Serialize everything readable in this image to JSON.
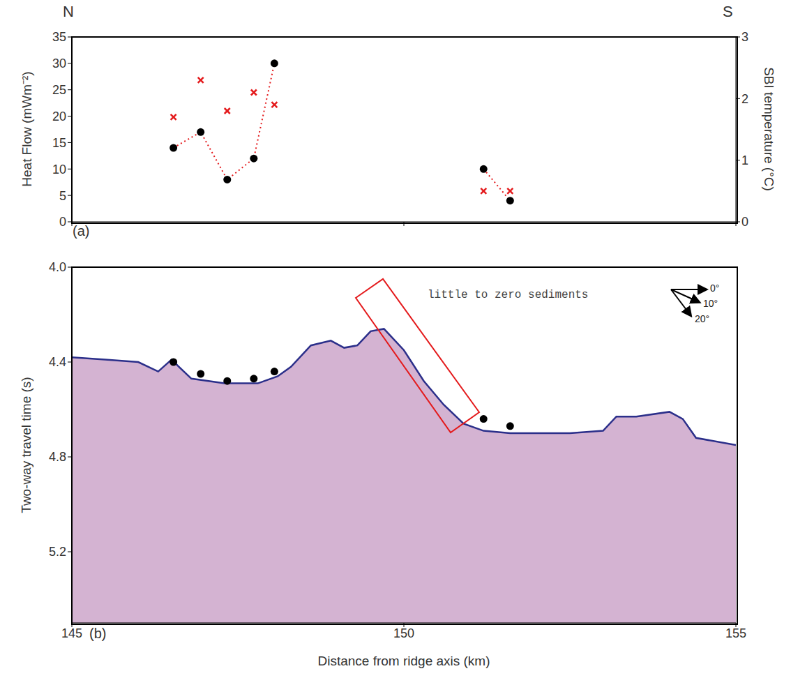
{
  "chart_data": [
    {
      "type": "line",
      "direction_labels": [
        "N",
        "S"
      ],
      "panel_label": "(a)",
      "y_label": "Heat Flow (mWm⁻²)",
      "y2_label": "SBI temperature (°C)",
      "xlim": [
        145,
        155
      ],
      "xticks": [
        145,
        150,
        155
      ],
      "ylim": [
        0,
        35
      ],
      "yticks": [
        0,
        5,
        10,
        15,
        20,
        25,
        30,
        35
      ],
      "y2lim": [
        0,
        3
      ],
      "y2ticks": [
        0,
        1,
        2,
        3
      ],
      "tick_labels": "y",
      "series": [
        {
          "x": [
            146.53,
            146.94,
            147.34,
            147.74,
            148.05
          ],
          "values": [
            14,
            17,
            8,
            12,
            30
          ],
          "color": "#e41a1c",
          "line_style": "dotted",
          "marker": "circle"
        },
        {
          "x": [
            151.2,
            151.6
          ],
          "values": [
            10,
            4
          ],
          "color": "#e41a1c",
          "line_style": "dotted",
          "marker": "circle"
        },
        {
          "type": "scatter",
          "axis": "y2",
          "x": [
            146.53,
            146.94,
            147.34,
            147.74,
            148.05,
            151.2,
            151.6
          ],
          "values": [
            1.7,
            2.3,
            1.8,
            2.1,
            1.9,
            0.5,
            0.5
          ],
          "color": "#e41a1c",
          "marker": "cross"
        }
      ]
    },
    {
      "type": "area",
      "panel_label": "(b)",
      "x_label": "Distance from ridge axis (km)",
      "y_label": "Two-way travel time (s)",
      "annotations": [
        "little to zero sediments"
      ],
      "angle_labels": [
        "0°",
        "10°",
        "20°"
      ],
      "xlim": [
        145,
        155
      ],
      "xticks": [
        145,
        150,
        155
      ],
      "ylim": [
        4.0,
        5.5
      ],
      "yticks": [
        {
          "value": 4.0,
          "label": "4.0"
        },
        4.4,
        4.8,
        5.2
      ],
      "series": [
        {
          "type": "area",
          "x": [
            145,
            145.5,
            146,
            146.3,
            146.5,
            146.8,
            147.3,
            147.8,
            148.1,
            148.3,
            148.6,
            148.9,
            149.1,
            149.3,
            149.5,
            149.7,
            150,
            150.3,
            150.6,
            150.9,
            151.2,
            151.6,
            152.5,
            153,
            153.2,
            153.5,
            154,
            154.2,
            154.4,
            155
          ],
          "values": [
            4.38,
            4.39,
            4.4,
            4.44,
            4.39,
            4.47,
            4.49,
            4.49,
            4.46,
            4.42,
            4.33,
            4.31,
            4.34,
            4.33,
            4.27,
            4.26,
            4.35,
            4.48,
            4.58,
            4.66,
            4.69,
            4.7,
            4.7,
            4.69,
            4.63,
            4.63,
            4.61,
            4.64,
            4.72,
            4.75
          ],
          "color": "#d4b3d2"
        },
        {
          "type": "scatter",
          "x": [
            146.53,
            146.94,
            147.34,
            147.74,
            148.05,
            151.2,
            151.6
          ],
          "values": [
            4.4,
            4.45,
            4.48,
            4.47,
            4.44,
            4.64,
            4.67
          ],
          "color": "#000000",
          "marker": "circle"
        }
      ]
    }
  ]
}
